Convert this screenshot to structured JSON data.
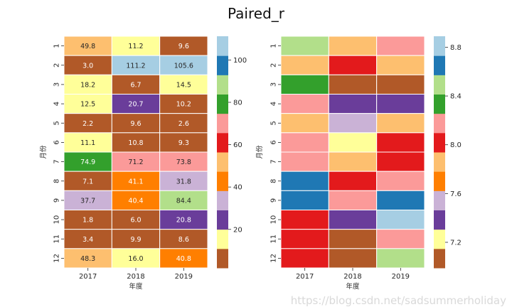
{
  "figure": {
    "title": "Paired_r",
    "watermark": "https://blog.csdn.net/sadsummerholiday"
  },
  "palette": {
    "name": "Paired_r",
    "colors_low_to_high": [
      "#b15928",
      "#ffff99",
      "#6a3d9a",
      "#cab2d6",
      "#ff7f00",
      "#fdbf6f",
      "#e31a1c",
      "#fb9a99",
      "#33a02c",
      "#b2df8a",
      "#1f78b4",
      "#a6cee3"
    ],
    "dark_text": "#262626",
    "light_text": "#ffffff",
    "light_text_bands": [
      0,
      2,
      4,
      6,
      8,
      10
    ]
  },
  "chart_data": [
    {
      "type": "heatmap",
      "title": "",
      "xlabel": "年度",
      "ylabel": "月份",
      "x": [
        "2017",
        "2018",
        "2019"
      ],
      "y": [
        "1",
        "2",
        "3",
        "4",
        "5",
        "6",
        "7",
        "8",
        "9",
        "10",
        "11",
        "12"
      ],
      "annotated": true,
      "values": [
        [
          49.8,
          11.2,
          9.6
        ],
        [
          3.0,
          111.2,
          105.6
        ],
        [
          18.2,
          6.7,
          14.5
        ],
        [
          12.5,
          20.7,
          10.2
        ],
        [
          2.2,
          9.6,
          2.6
        ],
        [
          11.1,
          10.8,
          9.3
        ],
        [
          74.9,
          71.2,
          73.8
        ],
        [
          7.1,
          41.1,
          31.8
        ],
        [
          37.7,
          40.4,
          84.4
        ],
        [
          1.8,
          6.0,
          20.8
        ],
        [
          3.4,
          9.9,
          8.6
        ],
        [
          48.3,
          16.0,
          40.8
        ]
      ],
      "vmin": 1.8,
      "vmax": 111.2,
      "colorbar": {
        "ticks": [
          20,
          40,
          60,
          80,
          100
        ],
        "tick_labels": [
          "20",
          "40",
          "60",
          "80",
          "100"
        ]
      }
    },
    {
      "type": "heatmap",
      "title": "",
      "xlabel": "年度",
      "ylabel": "月份",
      "x": [
        "2017",
        "2018",
        "2019"
      ],
      "y": [
        "1",
        "2",
        "3",
        "4",
        "5",
        "6",
        "7",
        "8",
        "9",
        "10",
        "11",
        "12"
      ],
      "annotated": false,
      "values": [
        [
          8.5,
          7.86,
          8.18
        ],
        [
          7.86,
          8.02,
          7.86
        ],
        [
          8.34,
          7.07,
          7.07
        ],
        [
          8.18,
          7.39,
          7.39
        ],
        [
          7.86,
          7.54,
          7.86
        ],
        [
          8.18,
          7.23,
          8.02
        ],
        [
          8.18,
          7.86,
          8.02
        ],
        [
          8.66,
          8.02,
          8.18
        ],
        [
          8.66,
          8.18,
          8.66
        ],
        [
          8.02,
          7.39,
          8.81
        ],
        [
          8.02,
          7.07,
          8.18
        ],
        [
          8.02,
          7.07,
          8.5
        ]
      ],
      "vmin": 6.99,
      "vmax": 8.89,
      "colorbar": {
        "ticks": [
          7.2,
          7.6,
          8.0,
          8.4,
          8.8
        ],
        "tick_labels": [
          "7.2",
          "7.6",
          "8.0",
          "8.4",
          "8.8"
        ]
      }
    }
  ]
}
